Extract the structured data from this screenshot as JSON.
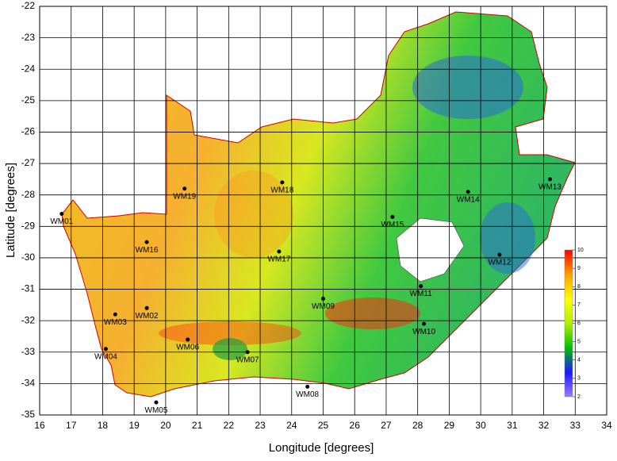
{
  "chart_data": {
    "type": "scatter",
    "xlabel": "Longitude [degrees]",
    "ylabel": "Latitude [degrees]",
    "xlim": [
      16,
      34
    ],
    "ylim": [
      -35,
      -22
    ],
    "xticks": [
      16,
      17,
      18,
      19,
      20,
      21,
      22,
      23,
      24,
      25,
      26,
      27,
      28,
      29,
      30,
      31,
      32,
      33,
      34
    ],
    "yticks": [
      -22,
      -23,
      -24,
      -25,
      -26,
      -27,
      -28,
      -29,
      -30,
      -31,
      -32,
      -33,
      -34,
      -35
    ],
    "grid": true,
    "color": "#000000",
    "labels": [
      "WM01",
      "WM02",
      "WM03",
      "WM04",
      "WM05",
      "WM06",
      "WM07",
      "WM08",
      "WM09",
      "WM10",
      "WM11",
      "WM12",
      "WM13",
      "WM14",
      "WM15",
      "WM16",
      "WM17",
      "WM18",
      "WM19"
    ],
    "x": [
      16.7,
      19.4,
      18.4,
      18.1,
      19.7,
      20.7,
      22.6,
      24.5,
      25.0,
      28.2,
      28.1,
      30.6,
      32.2,
      29.6,
      27.2,
      19.4,
      23.6,
      23.7,
      20.6
    ],
    "y": [
      -28.6,
      -31.6,
      -31.8,
      -32.9,
      -34.6,
      -32.6,
      -33.0,
      -34.1,
      -31.3,
      -32.1,
      -30.9,
      -29.9,
      -27.5,
      -27.9,
      -28.7,
      -29.5,
      -29.8,
      -27.6,
      -27.8
    ],
    "colorbar": {
      "lim": [
        2,
        10
      ],
      "ticks": [
        2,
        3,
        4,
        5,
        6,
        7,
        8,
        9,
        10
      ],
      "colors": [
        "#9a7bff",
        "#1a1aff",
        "#00c000",
        "#b0f000",
        "#ffff00",
        "#ffa000",
        "#ff0000"
      ]
    }
  }
}
